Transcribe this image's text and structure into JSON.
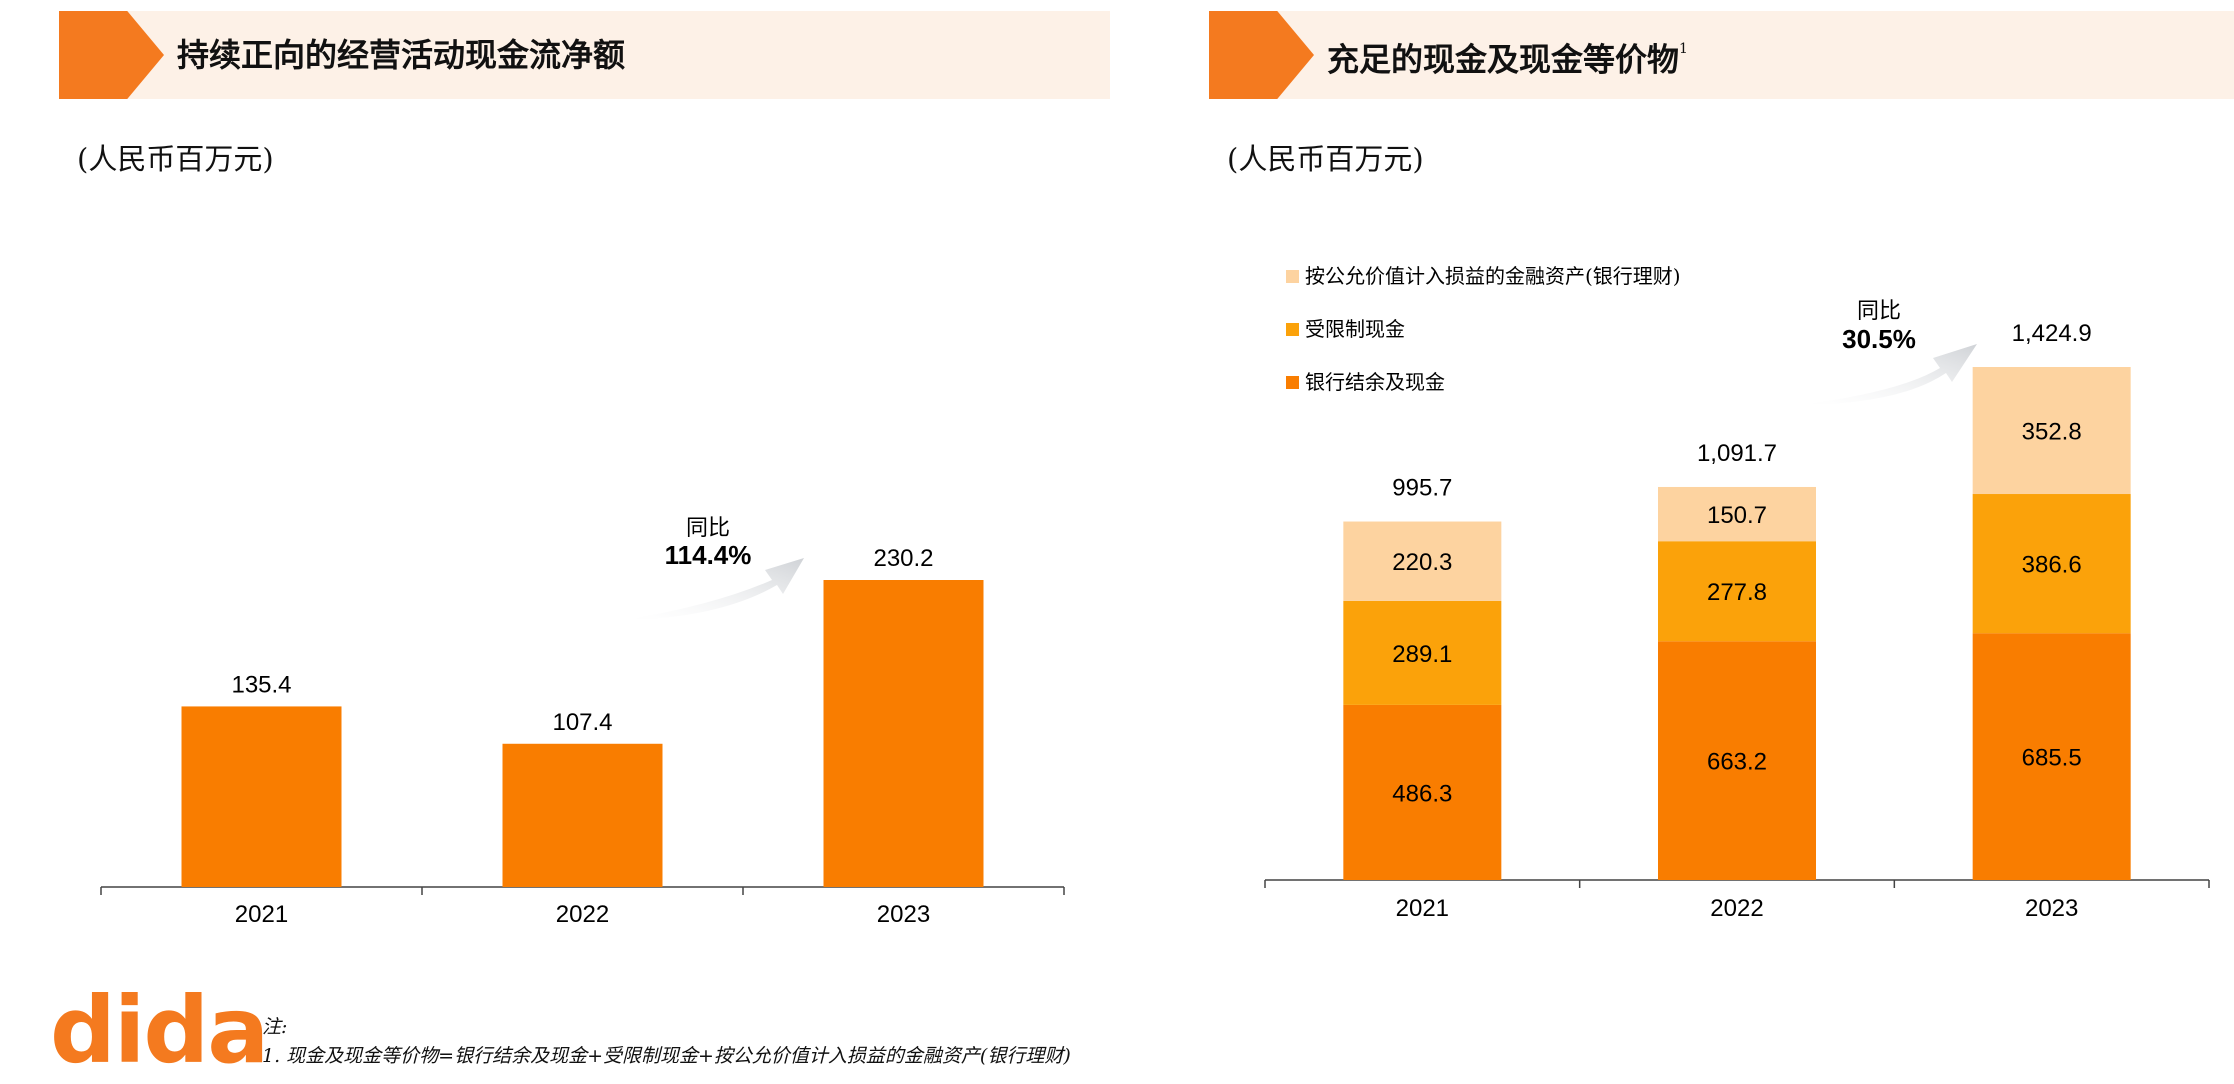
{
  "left_panel": {
    "title": "持续正向的经营活动现金流净额",
    "unit": "(人民币百万元)",
    "yoy_label": "同比",
    "yoy_value": "114.4%"
  },
  "right_panel": {
    "title": "充足的现金及现金等价物",
    "title_sup": "1",
    "unit": "(人民币百万元)",
    "yoy_label": "同比",
    "yoy_value": "30.5%"
  },
  "colors": {
    "orange": "#F97D00",
    "amber": "#FBA20A",
    "peach": "#FDD3A0",
    "header_bg": "#FDF1E7",
    "tab": "#F47A1F"
  },
  "chart_data": [
    {
      "type": "bar",
      "title": "持续正向的经营活动现金流净额",
      "ylabel": "(人民币百万元)",
      "categories": [
        "2021",
        "2022",
        "2023"
      ],
      "values": [
        135.4,
        107.4,
        230.2
      ],
      "value_labels": [
        "135.4",
        "107.4",
        "230.2"
      ],
      "ylim": [
        0,
        230.2
      ]
    },
    {
      "type": "bar",
      "stacked": true,
      "title": "充足的现金及现金等价物",
      "ylabel": "(人民币百万元)",
      "categories": [
        "2021",
        "2022",
        "2023"
      ],
      "series": [
        {
          "name": "银行结余及现金",
          "values": [
            486.3,
            663.2,
            685.5
          ],
          "labels": [
            "486.3",
            "663.2",
            "685.5"
          ]
        },
        {
          "name": "受限制现金",
          "values": [
            289.1,
            277.8,
            386.6
          ],
          "labels": [
            "289.1",
            "277.8",
            "386.6"
          ]
        },
        {
          "name": "按公允价值计入损益的金融资产(银行理财)",
          "values": [
            220.3,
            150.7,
            352.8
          ],
          "labels": [
            "220.3",
            "150.7",
            "352.8"
          ]
        }
      ],
      "totals": [
        "995.7",
        "1,091.7",
        "1,424.9"
      ],
      "legend_order": [
        "按公允价值计入损益的金融资产(银行理财)",
        "受限制现金",
        "银行结余及现金"
      ],
      "ylim": [
        0,
        1424.9
      ]
    }
  ],
  "footer": {
    "logo": "dida",
    "note_label": "注:",
    "note_1": "1. 现金及现金等价物=银行结余及现金+受限制现金+按公允价值计入损益的金融资产(银行理财)"
  }
}
